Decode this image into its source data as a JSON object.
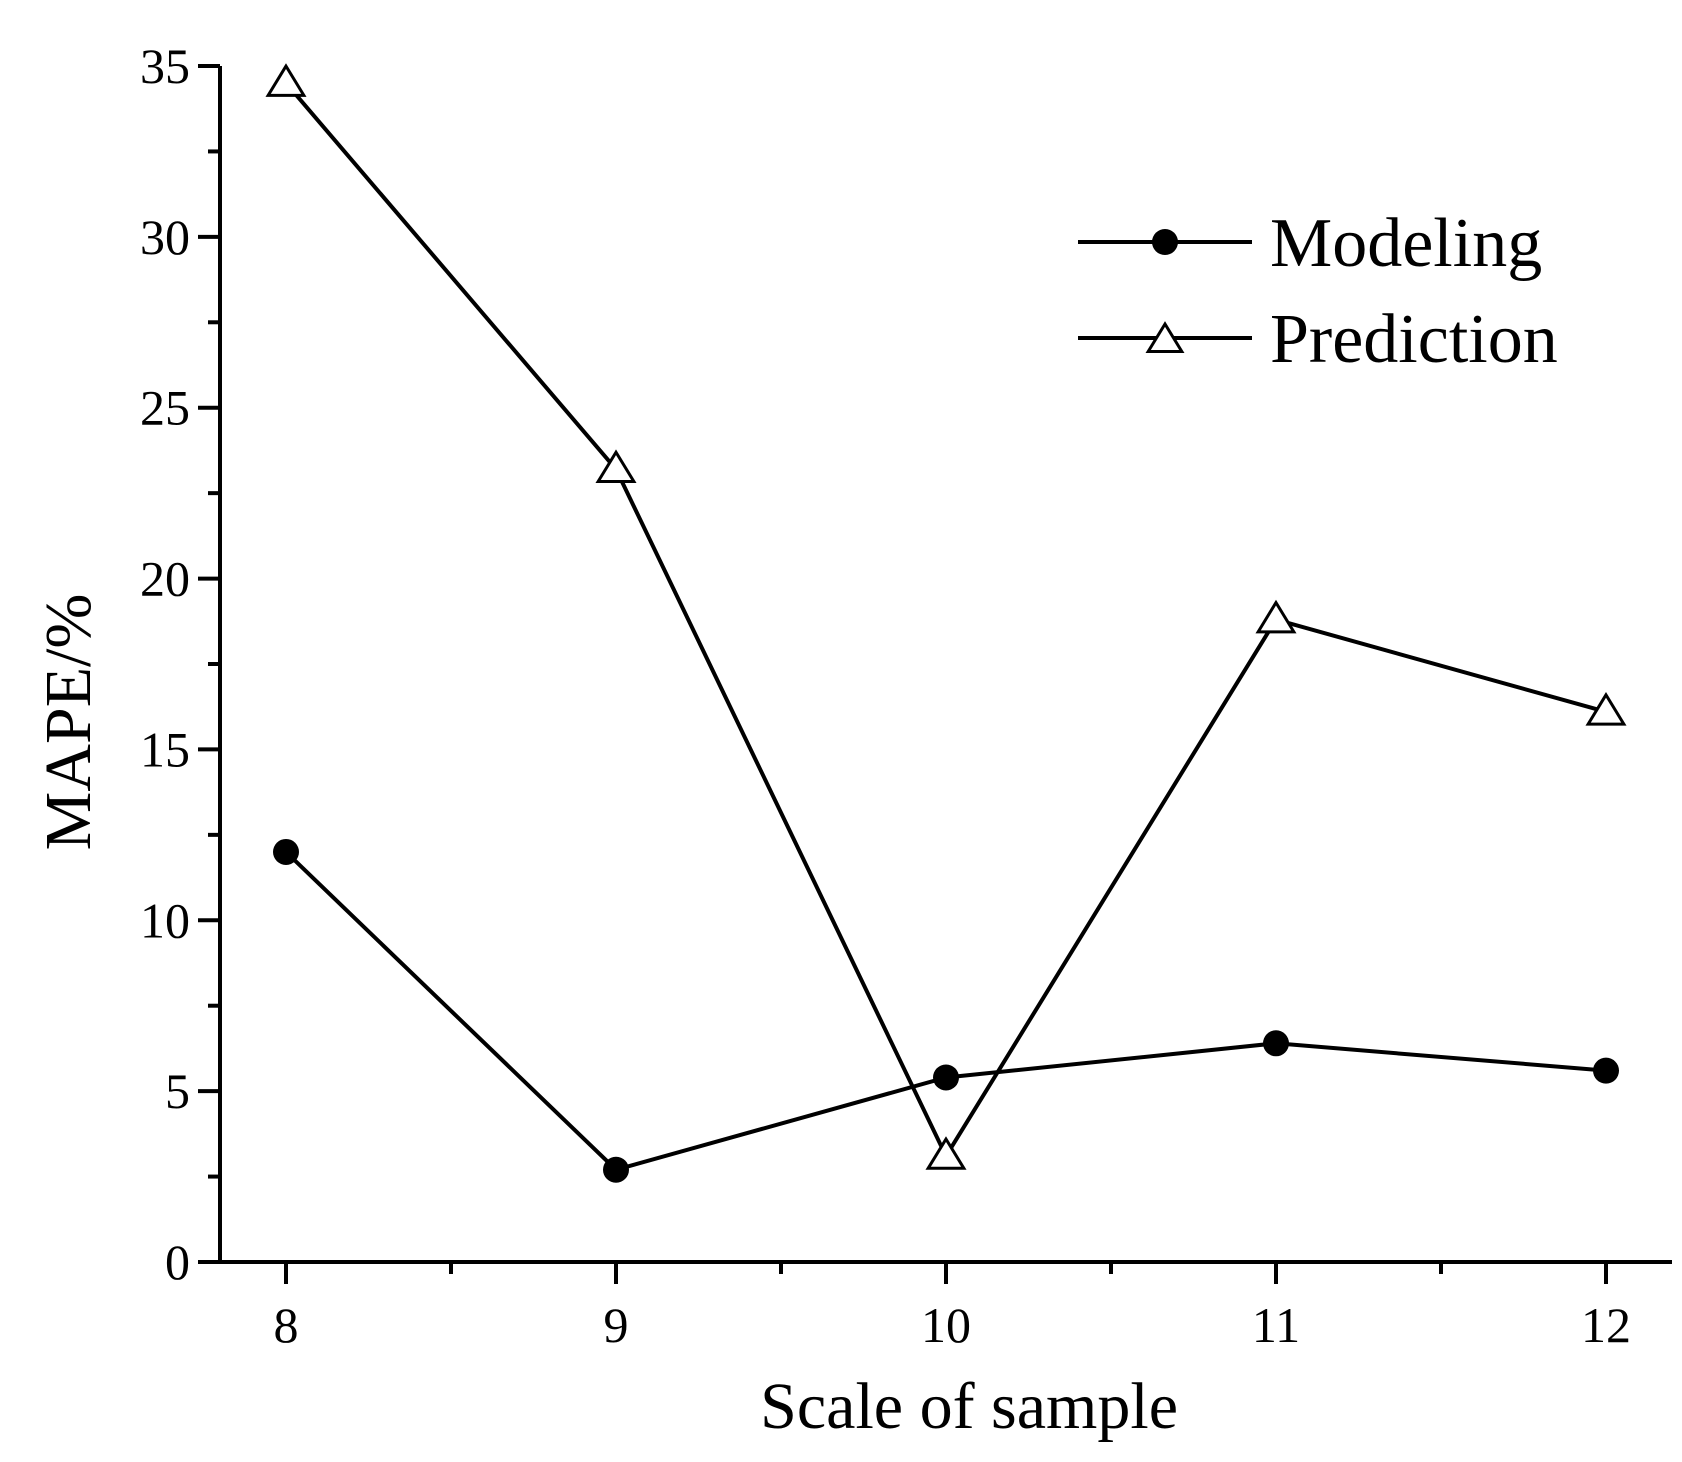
{
  "chart_data": {
    "type": "line",
    "title": "",
    "xlabel": "Scale of sample",
    "ylabel": "MAPE/%",
    "x": [
      8,
      9,
      10,
      11,
      12
    ],
    "xticks": [
      "8",
      "9",
      "10",
      "11",
      "12"
    ],
    "xlim": [
      7.8,
      12.2
    ],
    "ylim": [
      0,
      35
    ],
    "yticks": [
      "0",
      "5",
      "10",
      "15",
      "20",
      "25",
      "30",
      "35"
    ],
    "grid": false,
    "legend_position": "top-right",
    "series": [
      {
        "name": "Modeling",
        "marker": "filled-circle",
        "values": [
          12.0,
          2.7,
          5.4,
          6.4,
          5.6
        ]
      },
      {
        "name": "Prediction",
        "marker": "open-triangle",
        "values": [
          34.5,
          23.2,
          3.1,
          18.8,
          16.1
        ]
      }
    ],
    "colors": {
      "line": "#000000",
      "background": "#ffffff"
    }
  }
}
